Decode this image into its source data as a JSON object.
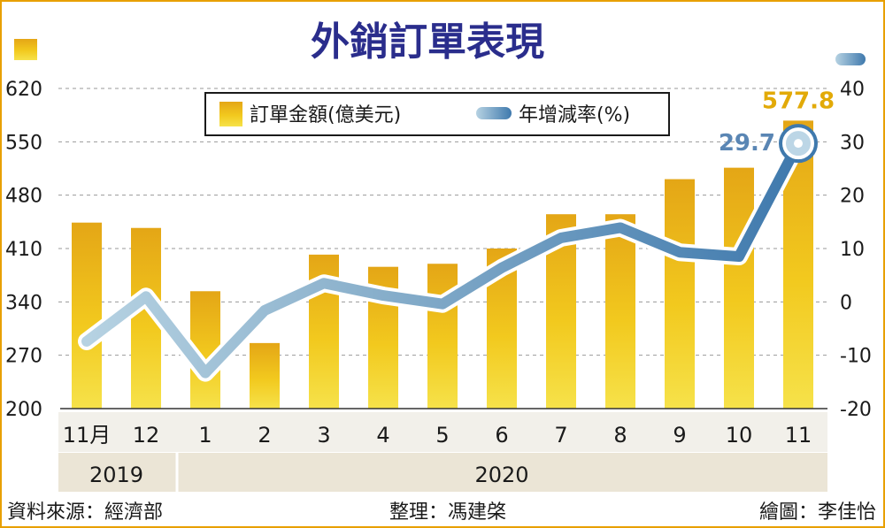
{
  "chart_data": {
    "type": "bar+line",
    "title": "外銷訂單表現",
    "categories": [
      "11月",
      "12",
      "1",
      "2",
      "3",
      "4",
      "5",
      "6",
      "7",
      "8",
      "9",
      "10",
      "11"
    ],
    "year_groups": [
      {
        "label": "2019",
        "span": [
          0,
          1
        ]
      },
      {
        "label": "2020",
        "span": [
          2,
          12
        ]
      }
    ],
    "series": [
      {
        "name": "訂單金額(億美元)",
        "axis": "left",
        "type": "bar",
        "color": "#f2c618",
        "values": [
          444,
          437,
          354,
          286,
          402,
          386,
          390,
          410,
          455,
          455,
          501,
          516,
          577.8
        ]
      },
      {
        "name": "年增減率(%)",
        "axis": "right",
        "type": "line",
        "color": "#5a8fba",
        "values": [
          -7.4,
          1.0,
          -13.3,
          -1.6,
          3.5,
          1.2,
          -0.4,
          6.4,
          12.0,
          13.9,
          9.3,
          8.5,
          29.7
        ]
      }
    ],
    "y_left": {
      "min": 200,
      "max": 620,
      "ticks": [
        620,
        550,
        480,
        410,
        340,
        270,
        200
      ]
    },
    "y_right": {
      "min": -20,
      "max": 40,
      "ticks": [
        40,
        30,
        20,
        10,
        0,
        -10,
        -20
      ]
    },
    "data_labels": {
      "bar_last": "577.8",
      "line_last": "29.7"
    },
    "grid": "dashed-horizontal",
    "legend_position": "top-left"
  },
  "footer": {
    "source": "資料來源：經濟部",
    "editor": "整理：馮建棨",
    "artist": "繪圖：李佳怡"
  },
  "colors": {
    "title": "#2a2d8c",
    "bar": "#f2c618",
    "line": "#5a8fba",
    "axis_band": "#ebe5d6",
    "border": "#e8a000"
  }
}
